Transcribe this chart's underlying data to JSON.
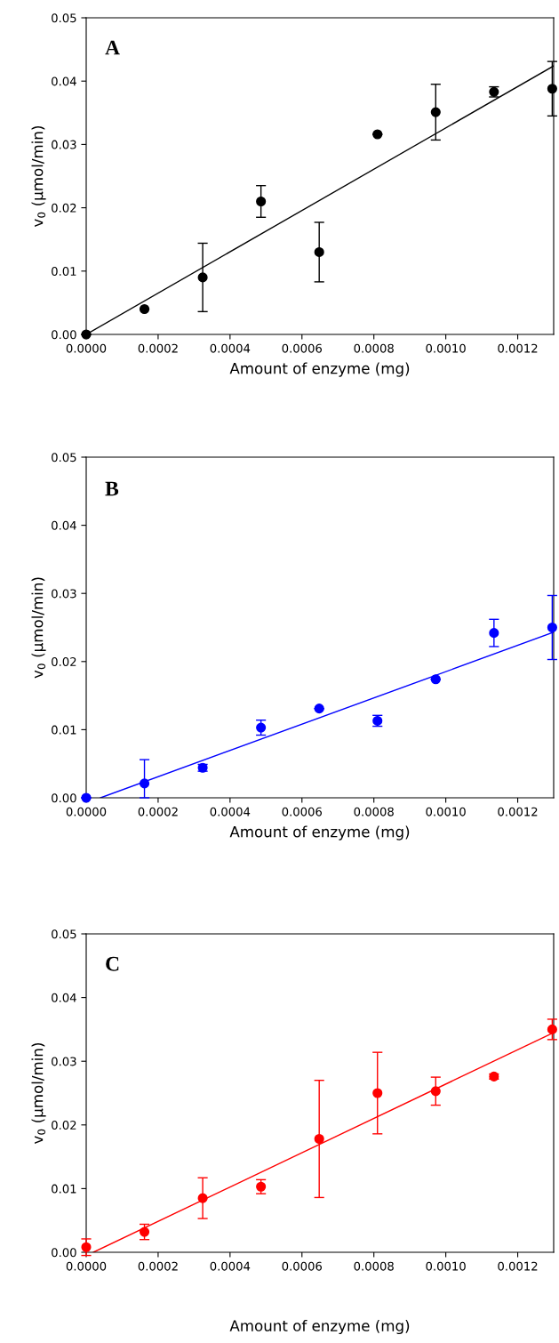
{
  "chart_data": [
    {
      "type": "scatter",
      "annotations": [
        "A"
      ],
      "xlabel": "Amount of enzyme (mg)",
      "ylabel": "v$_{0}$ (µmol/min)",
      "xlim": [
        0,
        0.0013
      ],
      "ylim": [
        0,
        0.05
      ],
      "xticks": [
        {
          "value": 0,
          "label": "0.0000"
        },
        {
          "value": 0.0002,
          "label": "0.0002"
        },
        {
          "value": 0.0004,
          "label": "0.0004"
        },
        {
          "value": 0.0006,
          "label": "0.0006"
        },
        {
          "value": 0.0008,
          "label": "0.0008"
        },
        {
          "value": 0.001,
          "label": "0.0010"
        },
        {
          "value": 0.0012,
          "label": "0.0012"
        }
      ],
      "yticks": [
        {
          "value": 0,
          "label": "0.00"
        },
        {
          "value": 0.01,
          "label": "0.01"
        },
        {
          "value": 0.02,
          "label": "0.02"
        },
        {
          "value": 0.03,
          "label": "0.03"
        },
        {
          "value": 0.04,
          "label": "0.04"
        },
        {
          "value": 0.05,
          "label": "0.05"
        }
      ],
      "series": [
        {
          "marker": "circle",
          "color": "#000000",
          "x": [
            0,
            0.000162,
            0.000324,
            0.000486,
            0.000648,
            0.00081,
            0.000972,
            0.001134,
            0.001296
          ],
          "values": [
            0,
            0.004,
            0.009,
            0.021,
            0.013,
            0.0316,
            0.0351,
            0.0383,
            0.0388
          ],
          "errors": [
            null,
            null,
            0.0054,
            0.0025,
            0.0047,
            null,
            0.0044,
            0.0008,
            0.0043
          ]
        },
        {
          "type": "line",
          "color": "#000000",
          "x": [
            0,
            0.0013
          ],
          "values": [
            0,
            0.0424
          ]
        }
      ]
    },
    {
      "type": "scatter",
      "annotations": [
        "B"
      ],
      "xlabel": "Amount of enzyme (mg)",
      "ylabel": "v$_{0}$ (µmol/min)",
      "xlim": [
        0,
        0.0013
      ],
      "ylim": [
        0,
        0.05
      ],
      "xticks": [
        {
          "value": 0,
          "label": "0.0000"
        },
        {
          "value": 0.0002,
          "label": "0.0002"
        },
        {
          "value": 0.0004,
          "label": "0.0004"
        },
        {
          "value": 0.0006,
          "label": "0.0006"
        },
        {
          "value": 0.0008,
          "label": "0.0008"
        },
        {
          "value": 0.001,
          "label": "0.0010"
        },
        {
          "value": 0.0012,
          "label": "0.0012"
        }
      ],
      "yticks": [
        {
          "value": 0,
          "label": "0.00"
        },
        {
          "value": 0.01,
          "label": "0.01"
        },
        {
          "value": 0.02,
          "label": "0.02"
        },
        {
          "value": 0.03,
          "label": "0.03"
        },
        {
          "value": 0.04,
          "label": "0.04"
        },
        {
          "value": 0.05,
          "label": "0.05"
        }
      ],
      "series": [
        {
          "marker": "circle",
          "color": "#0000ff",
          "x": [
            0,
            0.000162,
            0.000324,
            0.000486,
            0.000648,
            0.00081,
            0.000972,
            0.001134,
            0.001296
          ],
          "values": [
            0,
            0.0021,
            0.0044,
            0.0103,
            0.0131,
            0.0113,
            0.0174,
            0.0242,
            0.025
          ],
          "errors": [
            null,
            [
              0,
              0.0056
            ],
            0.0005,
            0.0011,
            null,
            0.0008,
            null,
            0.002,
            0.0047
          ]
        },
        {
          "type": "line",
          "color": "#0000ff",
          "x": [
            4e-05,
            0.0013
          ],
          "values": [
            0,
            0.0243
          ]
        }
      ]
    },
    {
      "type": "scatter",
      "annotations": [
        "C"
      ],
      "xlabel": "Amount of enzyme (mg)",
      "ylabel": "v$_{0}$ (µmol/min)",
      "xlim": [
        0,
        0.0013
      ],
      "ylim": [
        0,
        0.05
      ],
      "xticks": [
        {
          "value": 0,
          "label": "0.0000"
        },
        {
          "value": 0.0002,
          "label": "0.0002"
        },
        {
          "value": 0.0004,
          "label": "0.0004"
        },
        {
          "value": 0.0006,
          "label": "0.0006"
        },
        {
          "value": 0.0008,
          "label": "0.0008"
        },
        {
          "value": 0.001,
          "label": "0.0010"
        },
        {
          "value": 0.0012,
          "label": "0.0012"
        }
      ],
      "yticks": [
        {
          "value": 0,
          "label": "0.00"
        },
        {
          "value": 0.01,
          "label": "0.01"
        },
        {
          "value": 0.02,
          "label": "0.02"
        },
        {
          "value": 0.03,
          "label": "0.03"
        },
        {
          "value": 0.04,
          "label": "0.04"
        },
        {
          "value": 0.05,
          "label": "0.05"
        }
      ],
      "series": [
        {
          "marker": "circle",
          "color": "#ff0000",
          "x": [
            0,
            0.000162,
            0.000324,
            0.000486,
            0.000648,
            0.00081,
            0.000972,
            0.001134,
            0.001296
          ],
          "values": [
            0.0008,
            0.0032,
            0.0085,
            0.0103,
            0.0178,
            0.025,
            0.0253,
            0.0276,
            0.035
          ],
          "errors": [
            0.0013,
            0.0012,
            0.0032,
            0.0011,
            0.0092,
            0.0064,
            0.0022,
            0.0004,
            0.0016
          ]
        },
        {
          "type": "line",
          "color": "#ff0000",
          "x": [
            2e-05,
            0.0013
          ],
          "values": [
            0,
            0.0345
          ]
        }
      ]
    }
  ]
}
